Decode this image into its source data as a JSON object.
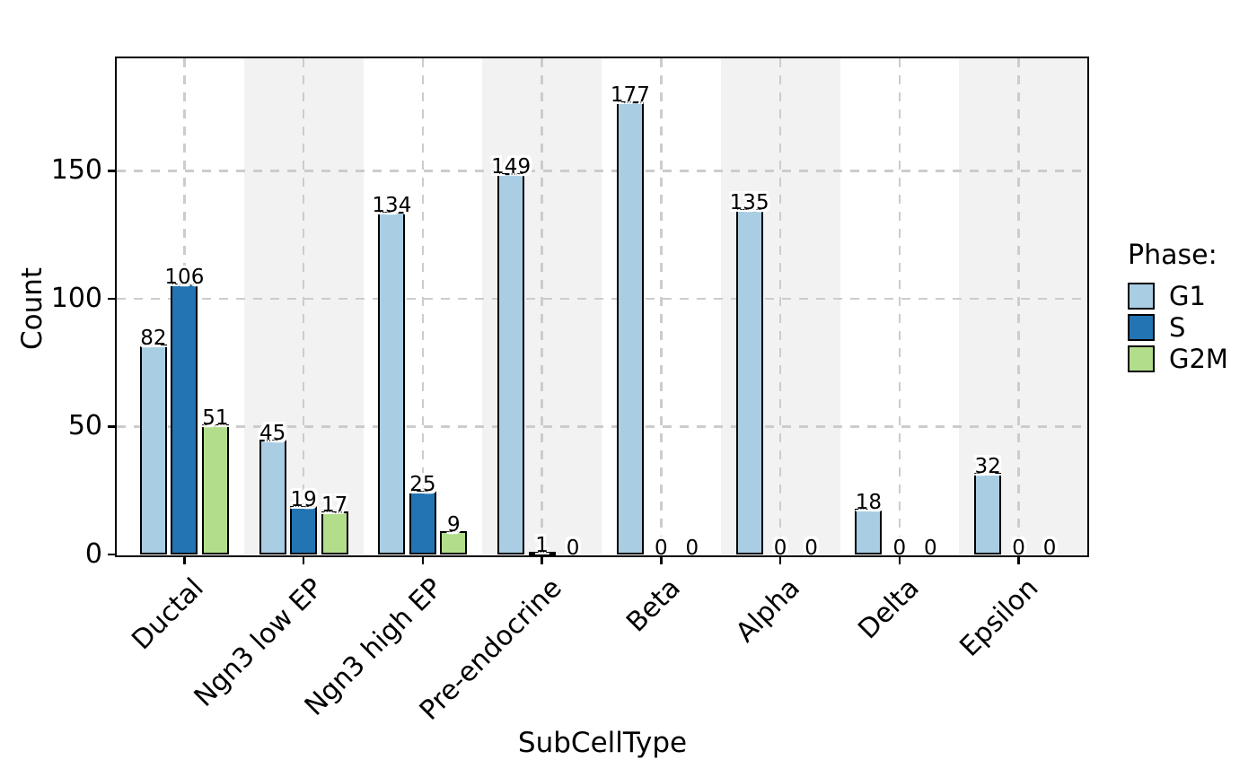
{
  "chart_data": {
    "type": "bar",
    "title": "",
    "xlabel": "SubCellType",
    "ylabel": "Count",
    "categories": [
      "Ductal",
      "Ngn3 low EP",
      "Ngn3 high EP",
      "Pre-endocrine",
      "Beta",
      "Alpha",
      "Delta",
      "Epsilon"
    ],
    "series": [
      {
        "name": "G1",
        "color": "#a9cde3",
        "values": [
          82,
          45,
          134,
          149,
          177,
          135,
          18,
          32
        ]
      },
      {
        "name": "S",
        "color": "#2374b2",
        "values": [
          106,
          19,
          25,
          1,
          0,
          0,
          0,
          0
        ]
      },
      {
        "name": "G2M",
        "color": "#b2de8c",
        "values": [
          51,
          17,
          9,
          0,
          0,
          0,
          0,
          0
        ]
      }
    ],
    "yticks": [
      0,
      50,
      100,
      150
    ],
    "ylim": [
      0,
      194
    ],
    "grid": true,
    "grid_style": "dashed",
    "grid_color": "#cccccc",
    "band_shading_color": "#f2f2f2",
    "bar_edge_color": "#000000",
    "bar_labels": true,
    "legend_title": "Phase:",
    "legend_position": "right",
    "legend_entries": [
      "G1",
      "S",
      "G2M"
    ]
  }
}
